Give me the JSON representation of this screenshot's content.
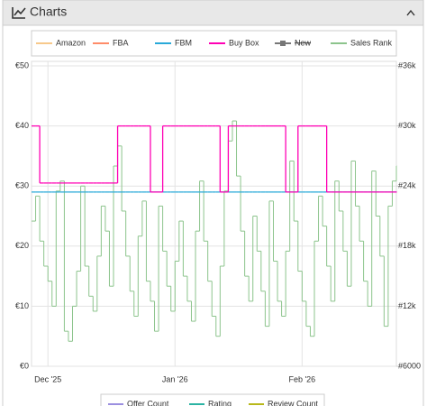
{
  "header": {
    "title": "Charts"
  },
  "chart_data": {
    "type": "line",
    "categories": [
      null,
      null,
      null,
      null,
      "Dec '25",
      null,
      null,
      null,
      null,
      null,
      null,
      null,
      null,
      null,
      null,
      null,
      null,
      null,
      null,
      null,
      null,
      null,
      null,
      null,
      null,
      null,
      null,
      null,
      null,
      null,
      null,
      null,
      null,
      null,
      null,
      "Jan '26",
      null,
      null,
      null,
      null,
      null,
      null,
      null,
      null,
      null,
      null,
      null,
      null,
      null,
      null,
      null,
      null,
      null,
      null,
      null,
      null,
      null,
      null,
      null,
      null,
      null,
      null,
      null,
      null,
      null,
      null,
      "Feb '26",
      null,
      null,
      null,
      null,
      null,
      null,
      null,
      null,
      null,
      null,
      null,
      null,
      null,
      null,
      null,
      null,
      null,
      null,
      null,
      null,
      null,
      null,
      null
    ],
    "ylim": [
      0,
      50
    ],
    "yticks": [
      {
        "value": 0,
        "label": "€0"
      },
      {
        "value": 10,
        "label": "€10"
      },
      {
        "value": 20,
        "label": "€20"
      },
      {
        "value": 30,
        "label": "€30"
      },
      {
        "value": 40,
        "label": "€40"
      },
      {
        "value": 50,
        "label": "€50"
      }
    ],
    "y2lim": [
      6000,
      36000
    ],
    "y2ticks": [
      {
        "value": 6000,
        "label": "#6000"
      },
      {
        "value": 12000,
        "label": "#12k"
      },
      {
        "value": 18000,
        "label": "#18k"
      },
      {
        "value": 24000,
        "label": "#24k"
      },
      {
        "value": 30000,
        "label": "#30k"
      },
      {
        "value": 36000,
        "label": "#36k"
      }
    ],
    "grid": true,
    "series": [
      {
        "name": "Amazon",
        "color": "#f7c98b"
      },
      {
        "name": "FBA",
        "color": "#ff8c69"
      },
      {
        "name": "FBM",
        "color": "#29a9d9",
        "values": [
          29,
          29,
          29,
          29,
          29,
          29,
          29,
          29,
          29,
          29,
          29,
          29,
          29,
          29,
          29,
          29,
          29,
          29,
          29,
          29,
          29,
          29,
          29,
          29,
          29,
          29,
          29,
          29,
          29,
          29,
          29,
          29,
          29,
          29,
          29,
          29,
          29,
          29,
          29,
          29,
          29,
          29,
          29,
          29,
          29,
          29,
          29,
          29,
          29,
          29,
          29,
          29,
          29,
          29,
          29,
          29,
          29,
          29,
          29,
          29,
          29,
          29,
          29,
          29,
          29,
          29,
          29,
          29,
          29,
          29,
          29,
          29,
          29,
          29,
          29,
          29,
          29,
          29,
          29,
          29,
          29,
          29,
          29,
          29,
          29,
          29,
          29,
          29,
          29,
          29
        ]
      },
      {
        "name": "Buy Box",
        "color": "#ff00b4",
        "values": [
          40,
          40,
          30.5,
          30.5,
          30.5,
          30.5,
          30.5,
          30.5,
          30.5,
          30.5,
          30.5,
          30.5,
          30.5,
          30.5,
          30.5,
          30.5,
          30.5,
          30.5,
          30.5,
          30.5,
          30.5,
          40,
          40,
          40,
          40,
          40,
          40,
          40,
          40,
          29,
          29,
          29,
          40,
          40,
          40,
          40,
          40,
          40,
          40,
          40,
          40,
          40,
          40,
          40,
          40,
          40,
          29,
          29,
          40,
          40,
          40,
          40,
          40,
          40,
          40,
          40,
          40,
          40,
          40,
          40,
          40,
          40,
          29,
          29,
          29,
          40,
          40,
          40,
          40,
          40,
          40,
          40,
          29,
          29,
          29,
          29,
          29,
          29,
          29,
          29,
          29,
          29,
          29,
          29,
          29,
          29,
          29,
          29,
          29,
          29
        ]
      },
      {
        "name": "New",
        "color": "#777777",
        "hidden": true
      },
      {
        "name": "Sales Rank",
        "color": "#8cc48c",
        "axis": "y2",
        "values": [
          20500,
          23000,
          18500,
          16000,
          14500,
          12000,
          23500,
          24500,
          9500,
          8500,
          12000,
          15500,
          24000,
          16000,
          13000,
          11500,
          17000,
          22000,
          19500,
          14000,
          26000,
          28000,
          21500,
          17000,
          13500,
          11000,
          19000,
          22500,
          14500,
          12500,
          9500,
          22000,
          17500,
          14000,
          11500,
          16500,
          20500,
          15000,
          12500,
          10500,
          19500,
          24500,
          18500,
          14500,
          11000,
          9000,
          16000,
          23500,
          28500,
          30500,
          25000,
          19500,
          15000,
          12500,
          21000,
          17500,
          13500,
          10000,
          22500,
          16500,
          12500,
          11000,
          17500,
          26500,
          20500,
          15500,
          12500,
          10000,
          9000,
          18500,
          23000,
          20000,
          16000,
          12500,
          24500,
          21500,
          17500,
          14000,
          26500,
          22000,
          18500,
          14500,
          12000,
          25500,
          21000,
          17000,
          10000,
          22000,
          24500,
          26000
        ]
      }
    ],
    "secondary_legend": [
      {
        "name": "Offer Count",
        "color": "#9b8fe0"
      },
      {
        "name": "Rating",
        "color": "#2bb3a3"
      },
      {
        "name": "Review Count",
        "color": "#b8b81a"
      }
    ]
  }
}
